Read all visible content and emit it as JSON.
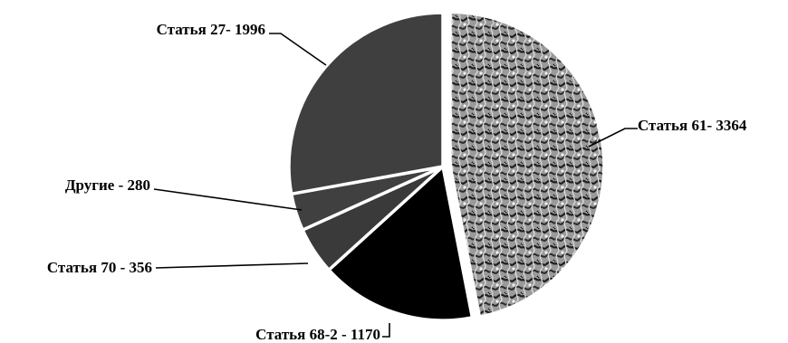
{
  "chart_data": {
    "type": "pie",
    "title": "",
    "slices": [
      {
        "label": "Статья 61- 3364",
        "name": "Статья 61",
        "value": 3364,
        "fill": "pattern",
        "color": "#888888"
      },
      {
        "label": "Статья 68-2 - 1170",
        "name": "Статья 68-2",
        "value": 1170,
        "fill": "solid",
        "color": "#000000"
      },
      {
        "label": "Статья 70 - 356",
        "name": "Статья 70",
        "value": 356,
        "fill": "solid",
        "color": "#3a3a3a"
      },
      {
        "label": "Другие - 280",
        "name": "Другие",
        "value": 280,
        "fill": "solid",
        "color": "#404040"
      },
      {
        "label": "Статья 27- 1996",
        "name": "Статья 27",
        "value": 1996,
        "fill": "solid",
        "color": "#3f3f3f"
      }
    ],
    "start_angle": "12 o'clock",
    "direction": "clockwise",
    "exploded_slice": "Статья 61- 3364",
    "legend": "none"
  }
}
